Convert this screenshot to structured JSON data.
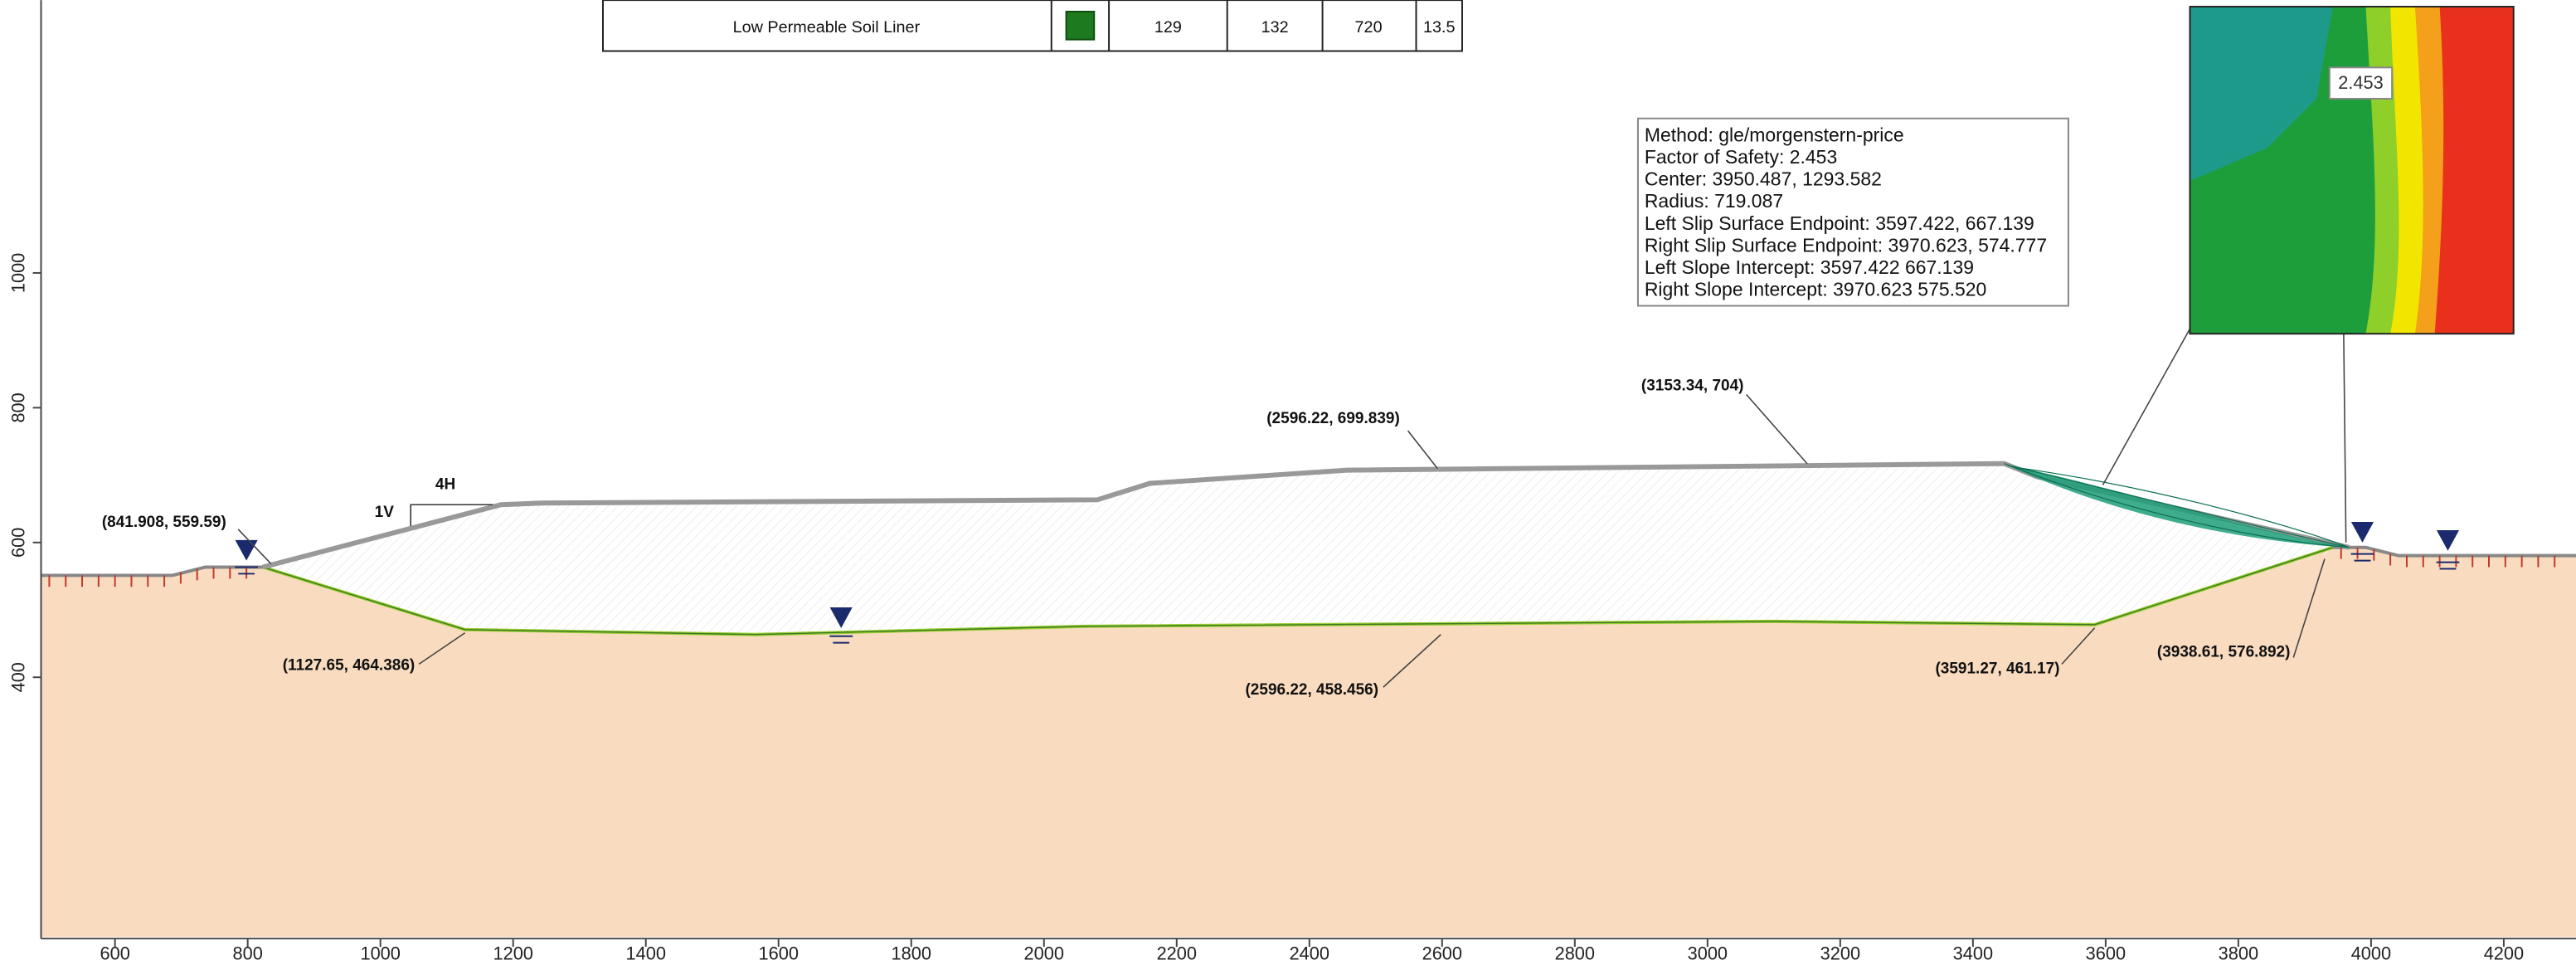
{
  "table": {
    "row": {
      "name": "Low Permeable Soil Liner",
      "values": [
        129,
        132,
        720,
        13.5
      ]
    }
  },
  "info_box": {
    "lines": [
      "Method: gle/morgenstern-price",
      "Factor of Safety: 2.453",
      "Center: 3950.487, 1293.582",
      "Radius: 719.087",
      "Left Slip Surface Endpoint: 3597.422, 667.139",
      "Right Slip Surface Endpoint: 3970.623, 574.777",
      "Left Slope Intercept: 3597.422 667.139",
      "Right Slope Intercept: 3970.623 575.520"
    ]
  },
  "inset_label": "2.453",
  "slope_labels": [
    "1V",
    "4H"
  ],
  "callouts": [
    "(841.908, 559.59)",
    "(2596.22, 699.839)",
    "(3153.34, 704)",
    "(1127.65, 464.386)",
    "(2596.22, 458.456)",
    "(3591.27, 461.17)",
    "(3938.61, 576.892)"
  ],
  "axes": {
    "xticks": [
      600,
      800,
      1000,
      1200,
      1400,
      1600,
      1800,
      2000,
      2200,
      2400,
      2600,
      2800,
      3000,
      3200,
      3400,
      3600,
      3800,
      4000,
      4200
    ],
    "yticks": [
      400,
      600,
      800,
      1000
    ]
  }
}
